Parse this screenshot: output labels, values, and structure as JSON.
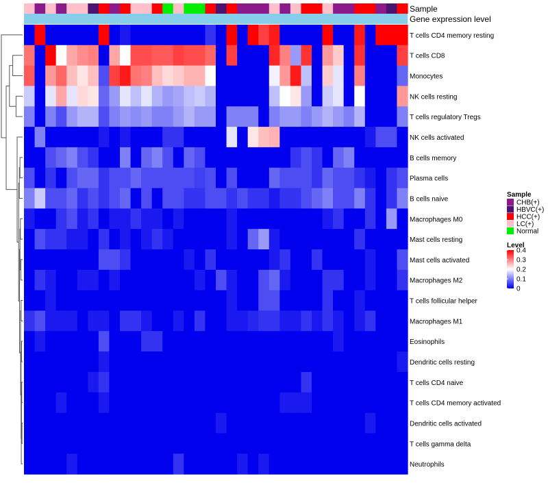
{
  "chart_data": {
    "type": "heatmap",
    "title": "",
    "annotation_tracks": [
      "Sample",
      "Gene expression level"
    ],
    "rows": [
      "T cells CD4 memory resting",
      "T cells CD8",
      "Monocytes",
      "NK cells resting",
      "T cells regulatory  Tregs",
      "NK cells activated",
      "B cells memory",
      "Plasma cells",
      "B cells naive",
      "Macrophages M0",
      "Mast cells resting",
      "Mast cells activated",
      "Macrophages M2",
      "T cells follicular helper",
      "Macrophages M1",
      "Eosinophils",
      "Dendritic cells resting",
      "T cells CD4 naive",
      "T cells CD4 memory activated",
      "Dendritic cells activated",
      "T cells gamma delta",
      "Neutrophils"
    ],
    "sample_groups": [
      "LC(+)",
      "CHB(+)",
      "LC(+)",
      "CHB(+)",
      "LC(+)",
      "LC(+)",
      "HBVC(+)",
      "HCC(+)",
      "CHB(+)",
      "HCC(+)",
      "LC(+)",
      "LC(+)",
      "HCC(+)",
      "Normal",
      "LC(+)",
      "Normal",
      "Normal",
      "HCC(+)",
      "HBVC(+)",
      "HCC(+)",
      "CHB(+)",
      "CHB(+)",
      "CHB(+)",
      "LC(+)",
      "CHB(+)",
      "LC(+)",
      "HCC(+)",
      "HCC(+)",
      "LC(+)",
      "CHB(+)",
      "CHB(+)",
      "HCC(+)",
      "HCC(+)",
      "CHB(+)",
      "HBVC(+)",
      "HCC(+)"
    ],
    "values": [
      [
        0.0,
        0.4,
        0.0,
        0.0,
        0.0,
        0.0,
        0.0,
        0.4,
        0.0,
        0.02,
        0.0,
        0.0,
        0.0,
        0.0,
        0.0,
        0.0,
        0.0,
        0.04,
        0.0,
        0.4,
        0.0,
        0.4,
        0.35,
        0.38,
        0.0,
        0.0,
        0.0,
        0.0,
        0.4,
        0.0,
        0.0,
        0.38,
        0.0,
        0.4,
        0.4,
        0.4
      ],
      [
        0.31,
        0.0,
        0.4,
        0.2,
        0.27,
        0.29,
        0.3,
        0.0,
        0.27,
        0.2,
        0.34,
        0.34,
        0.33,
        0.33,
        0.35,
        0.34,
        0.34,
        0.32,
        0.0,
        0.35,
        0.0,
        0.0,
        0.0,
        0.37,
        0.3,
        0.12,
        0.36,
        0.0,
        0.28,
        0.24,
        0.0,
        0.36,
        0.0,
        0.0,
        0.0,
        0.35
      ],
      [
        0.33,
        0.0,
        0.28,
        0.32,
        0.25,
        0.22,
        0.25,
        0.06,
        0.35,
        0.38,
        0.31,
        0.3,
        0.25,
        0.23,
        0.24,
        0.26,
        0.26,
        0.2,
        0.0,
        0.0,
        0.0,
        0.0,
        0.0,
        0.19,
        0.28,
        0.38,
        0.15,
        0.0,
        0.24,
        0.18,
        0.0,
        0.3,
        0.0,
        0.0,
        0.0,
        0.08
      ],
      [
        0.16,
        0.0,
        0.18,
        0.27,
        0.18,
        0.23,
        0.22,
        0.08,
        0.12,
        0.18,
        0.15,
        0.18,
        0.14,
        0.12,
        0.13,
        0.15,
        0.16,
        0.14,
        0.0,
        0.0,
        0.0,
        0.0,
        0.0,
        0.15,
        0.2,
        0.22,
        0.12,
        0.0,
        0.16,
        0.18,
        0.0,
        0.2,
        0.0,
        0.0,
        0.0,
        0.28
      ],
      [
        0.1,
        0.0,
        0.1,
        0.06,
        0.12,
        0.14,
        0.14,
        0.06,
        0.1,
        0.12,
        0.11,
        0.12,
        0.1,
        0.1,
        0.12,
        0.14,
        0.12,
        0.12,
        0.0,
        0.1,
        0.1,
        0.1,
        0.0,
        0.1,
        0.12,
        0.12,
        0.1,
        0.12,
        0.14,
        0.12,
        0.1,
        0.14,
        0.0,
        0.0,
        0.0,
        0.1
      ],
      [
        0.0,
        0.1,
        0.0,
        0.0,
        0.0,
        0.0,
        0.0,
        0.02,
        0.0,
        0.02,
        0.0,
        0.0,
        0.0,
        0.04,
        0.04,
        0.0,
        0.0,
        0.0,
        0.0,
        0.18,
        0.0,
        0.22,
        0.25,
        0.26,
        0.0,
        0.0,
        0.0,
        0.0,
        0.0,
        0.0,
        0.0,
        0.0,
        0.02,
        0.06,
        0.06,
        0.0
      ],
      [
        0.0,
        0.0,
        0.06,
        0.08,
        0.1,
        0.06,
        0.04,
        0.0,
        0.0,
        0.1,
        0.0,
        0.08,
        0.1,
        0.06,
        0.0,
        0.08,
        0.06,
        0.0,
        0.0,
        0.0,
        0.0,
        0.0,
        0.0,
        0.0,
        0.0,
        0.04,
        0.06,
        0.04,
        0.0,
        0.08,
        0.1,
        0.0,
        0.0,
        0.0,
        0.0,
        0.0
      ],
      [
        0.06,
        0.0,
        0.04,
        0.0,
        0.06,
        0.08,
        0.08,
        0.04,
        0.06,
        0.06,
        0.08,
        0.06,
        0.06,
        0.06,
        0.06,
        0.06,
        0.05,
        0.06,
        0.0,
        0.06,
        0.0,
        0.0,
        0.0,
        0.08,
        0.06,
        0.06,
        0.06,
        0.04,
        0.08,
        0.06,
        0.06,
        0.04,
        0.02,
        0.0,
        0.04,
        0.06
      ],
      [
        0.1,
        0.16,
        0.06,
        0.06,
        0.08,
        0.04,
        0.06,
        0.04,
        0.06,
        0.08,
        0.0,
        0.06,
        0.0,
        0.06,
        0.06,
        0.04,
        0.04,
        0.06,
        0.06,
        0.04,
        0.06,
        0.04,
        0.04,
        0.02,
        0.04,
        0.04,
        0.06,
        0.08,
        0.1,
        0.06,
        0.06,
        0.1,
        0.04,
        0.0,
        0.04,
        0.1
      ],
      [
        0.02,
        0.0,
        0.0,
        0.04,
        0.06,
        0.02,
        0.04,
        0.0,
        0.02,
        0.02,
        0.04,
        0.02,
        0.02,
        0.0,
        0.02,
        0.0,
        0.0,
        0.0,
        0.0,
        0.02,
        0.0,
        0.0,
        0.0,
        0.0,
        0.0,
        0.0,
        0.0,
        0.0,
        0.02,
        0.04,
        0.0,
        0.0,
        0.04,
        0.0,
        0.12,
        0.0
      ],
      [
        0.0,
        0.06,
        0.04,
        0.04,
        0.02,
        0.02,
        0.0,
        0.04,
        0.0,
        0.02,
        0.0,
        0.02,
        0.04,
        0.02,
        0.0,
        0.0,
        0.0,
        0.0,
        0.0,
        0.02,
        0.0,
        0.08,
        0.12,
        0.02,
        0.0,
        0.0,
        0.0,
        0.0,
        0.0,
        0.0,
        0.0,
        0.04,
        0.0,
        0.0,
        0.0,
        0.0
      ],
      [
        0.0,
        0.0,
        0.0,
        0.0,
        0.0,
        0.0,
        0.0,
        0.06,
        0.06,
        0.04,
        0.0,
        0.0,
        0.0,
        0.0,
        0.0,
        0.02,
        0.0,
        0.04,
        0.0,
        0.0,
        0.0,
        0.0,
        0.0,
        0.02,
        0.04,
        0.0,
        0.0,
        0.04,
        0.0,
        0.0,
        0.0,
        0.0,
        0.02,
        0.0,
        0.0,
        0.06
      ],
      [
        0.0,
        0.04,
        0.02,
        0.0,
        0.0,
        0.02,
        0.02,
        0.0,
        0.02,
        0.0,
        0.0,
        0.0,
        0.0,
        0.0,
        0.0,
        0.0,
        0.02,
        0.0,
        0.06,
        0.02,
        0.0,
        0.0,
        0.06,
        0.08,
        0.02,
        0.0,
        0.0,
        0.0,
        0.04,
        0.04,
        0.0,
        0.0,
        0.02,
        0.0,
        0.0,
        0.04
      ],
      [
        0.0,
        0.0,
        0.02,
        0.0,
        0.0,
        0.0,
        0.0,
        0.0,
        0.0,
        0.0,
        0.0,
        0.0,
        0.0,
        0.0,
        0.0,
        0.0,
        0.0,
        0.0,
        0.0,
        0.02,
        0.0,
        0.0,
        0.06,
        0.06,
        0.0,
        0.0,
        0.0,
        0.0,
        0.04,
        0.0,
        0.0,
        0.02,
        0.0,
        0.0,
        0.0,
        0.0
      ],
      [
        0.04,
        0.06,
        0.02,
        0.02,
        0.02,
        0.0,
        0.02,
        0.02,
        0.0,
        0.04,
        0.04,
        0.02,
        0.0,
        0.0,
        0.02,
        0.0,
        0.04,
        0.0,
        0.0,
        0.02,
        0.02,
        0.03,
        0.04,
        0.04,
        0.02,
        0.02,
        0.04,
        0.02,
        0.04,
        0.02,
        0.0,
        0.02,
        0.04,
        0.0,
        0.0,
        0.0
      ],
      [
        0.0,
        0.02,
        0.0,
        0.0,
        0.0,
        0.0,
        0.0,
        0.06,
        0.0,
        0.0,
        0.0,
        0.04,
        0.04,
        0.0,
        0.0,
        0.0,
        0.0,
        0.0,
        0.0,
        0.0,
        0.0,
        0.0,
        0.0,
        0.0,
        0.0,
        0.0,
        0.0,
        0.0,
        0.0,
        0.02,
        0.0,
        0.0,
        0.0,
        0.0,
        0.0,
        0.0
      ],
      [
        0.0,
        0.0,
        0.0,
        0.0,
        0.0,
        0.0,
        0.0,
        0.02,
        0.0,
        0.0,
        0.0,
        0.0,
        0.0,
        0.0,
        0.0,
        0.0,
        0.0,
        0.0,
        0.0,
        0.0,
        0.0,
        0.0,
        0.0,
        0.0,
        0.0,
        0.0,
        0.0,
        0.0,
        0.0,
        0.0,
        0.0,
        0.0,
        0.0,
        0.0,
        0.0,
        0.02
      ],
      [
        0.0,
        0.0,
        0.0,
        0.0,
        0.0,
        0.0,
        0.02,
        0.04,
        0.0,
        0.0,
        0.0,
        0.0,
        0.0,
        0.0,
        0.0,
        0.0,
        0.0,
        0.0,
        0.0,
        0.0,
        0.0,
        0.0,
        0.0,
        0.0,
        0.0,
        0.0,
        0.04,
        0.0,
        0.0,
        0.0,
        0.0,
        0.0,
        0.0,
        0.0,
        0.0,
        0.0
      ],
      [
        0.0,
        0.0,
        0.0,
        0.02,
        0.0,
        0.0,
        0.0,
        0.02,
        0.0,
        0.0,
        0.0,
        0.0,
        0.0,
        0.0,
        0.0,
        0.0,
        0.0,
        0.0,
        0.0,
        0.0,
        0.0,
        0.0,
        0.0,
        0.0,
        0.02,
        0.02,
        0.02,
        0.0,
        0.0,
        0.0,
        0.0,
        0.0,
        0.0,
        0.0,
        0.0,
        0.0
      ],
      [
        0.0,
        0.0,
        0.0,
        0.0,
        0.0,
        0.0,
        0.0,
        0.0,
        0.0,
        0.0,
        0.0,
        0.0,
        0.0,
        0.0,
        0.0,
        0.0,
        0.0,
        0.0,
        0.02,
        0.0,
        0.0,
        0.0,
        0.0,
        0.0,
        0.0,
        0.0,
        0.0,
        0.0,
        0.0,
        0.0,
        0.0,
        0.0,
        0.02,
        0.0,
        0.0,
        0.0
      ],
      [
        0.0,
        0.0,
        0.0,
        0.0,
        0.0,
        0.0,
        0.0,
        0.0,
        0.0,
        0.0,
        0.0,
        0.0,
        0.0,
        0.0,
        0.0,
        0.0,
        0.0,
        0.0,
        0.0,
        0.0,
        0.0,
        0.0,
        0.0,
        0.0,
        0.0,
        0.0,
        0.0,
        0.0,
        0.0,
        0.0,
        0.0,
        0.0,
        0.0,
        0.0,
        0.0,
        0.0
      ],
      [
        0.0,
        0.0,
        0.0,
        0.0,
        0.02,
        0.0,
        0.0,
        0.0,
        0.0,
        0.0,
        0.0,
        0.0,
        0.0,
        0.0,
        0.04,
        0.0,
        0.0,
        0.0,
        0.0,
        0.0,
        0.02,
        0.0,
        0.02,
        0.0,
        0.0,
        0.0,
        0.0,
        0.0,
        0.0,
        0.0,
        0.0,
        0.0,
        0.0,
        0.0,
        0.0,
        0.0
      ]
    ],
    "value_range": [
      0,
      0.4
    ],
    "color_scale": {
      "low": "#0000ee",
      "mid": "#ffffff",
      "high": "#ff0000",
      "mid_value": 0.2
    },
    "legend_sample": {
      "title": "Sample",
      "entries": [
        {
          "label": "CHB(+)",
          "color": "#8b1a8b"
        },
        {
          "label": "HBVC(+)",
          "color": "#4b1470"
        },
        {
          "label": "HCC(+)",
          "color": "#ff0000"
        },
        {
          "label": "LC(+)",
          "color": "#ffc0cb"
        },
        {
          "label": "Normal",
          "color": "#00ee00"
        }
      ]
    },
    "legend_level": {
      "title": "Level",
      "ticks": [
        "0.4",
        "0.3",
        "0.2",
        "0.1",
        "0"
      ],
      "tick_values": [
        0.4,
        0.3,
        0.2,
        0.1,
        0
      ]
    },
    "expression_bar_color": "#87ceeb",
    "dendrogram_color": "#555555"
  }
}
